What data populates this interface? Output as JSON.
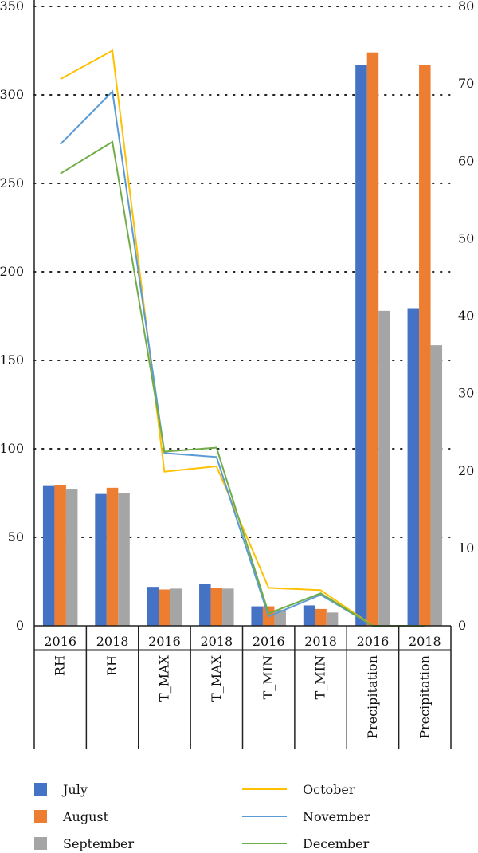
{
  "chart_data": {
    "type": "bar",
    "categories": [
      {
        "year": "2016",
        "variable": "RH"
      },
      {
        "year": "2018",
        "variable": "RH"
      },
      {
        "year": "2016",
        "variable": "T_MAX"
      },
      {
        "year": "2018",
        "variable": "T_MAX"
      },
      {
        "year": "2016",
        "variable": "T_MIN"
      },
      {
        "year": "2018",
        "variable": "T_MIN"
      },
      {
        "year": "2016",
        "variable": "Precipitation"
      },
      {
        "year": "2018",
        "variable": "Precipitation"
      }
    ],
    "y_left": {
      "min": 0,
      "max": 350,
      "ticks": [
        "0",
        "50",
        "100",
        "150",
        "200",
        "250",
        "300",
        "350"
      ]
    },
    "y_right": {
      "min": 0,
      "max": 80,
      "ticks": [
        "0",
        "10",
        "20",
        "30",
        "40",
        "50",
        "60",
        "70",
        "80"
      ]
    },
    "grid": "horizontal dotted",
    "legend_position": "bottom",
    "bar_series": [
      {
        "name": "July",
        "color": "#4472C4",
        "axis": "left",
        "values": [
          79,
          74.5,
          22,
          23.5,
          11,
          11.5,
          317,
          179.5
        ]
      },
      {
        "name": "August",
        "color": "#ED7D31",
        "axis": "left",
        "values": [
          79.5,
          78,
          20.5,
          21.5,
          11,
          9.5,
          324,
          317
        ]
      },
      {
        "name": "September",
        "color": "#A5A5A5",
        "axis": "left",
        "values": [
          77,
          75,
          21,
          21,
          9,
          7.5,
          178,
          158.5
        ]
      }
    ],
    "line_series": [
      {
        "name": "October",
        "color": "#FFC000",
        "axis": "right",
        "values": [
          70.6,
          74.3,
          19.9,
          20.6,
          4.9,
          4.6,
          0,
          0
        ]
      },
      {
        "name": "November",
        "color": "#5B9BD5",
        "axis": "right",
        "values": [
          62.2,
          69,
          22.3,
          21.8,
          1.2,
          4,
          0,
          0
        ]
      },
      {
        "name": "December",
        "color": "#70AD47",
        "axis": "right",
        "values": [
          58.4,
          62.5,
          22.5,
          23,
          1.6,
          4.2,
          0,
          0
        ]
      }
    ]
  }
}
